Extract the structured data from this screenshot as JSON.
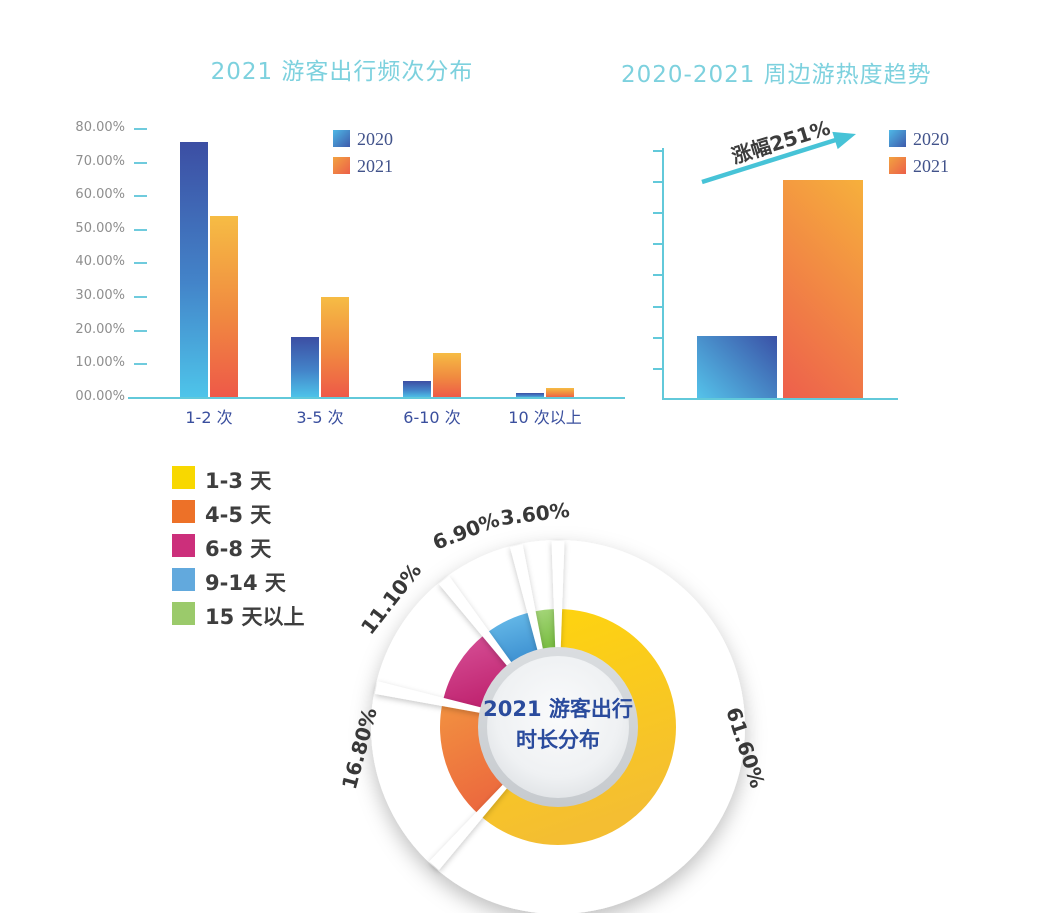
{
  "background": "#FFFFFF",
  "accent_colors": {
    "title_teal": "#7DD1DE",
    "axis_cyan": "#62C9DA",
    "arrow_cyan": "#47C3D7",
    "blue_bar_top": "#3C4EA3",
    "blue_bar_bottom": "#4EC5EA",
    "orange_bar_top": "#F6BC44",
    "orange_bar_bottom": "#EE5848"
  },
  "chart_data": [
    {
      "type": "bar",
      "title": "2021 游客出行频次分布",
      "categories": [
        "1-2 次",
        "3-5 次",
        "6-10 次",
        "10 次以上"
      ],
      "series": [
        {
          "name": "2020",
          "values": [
            76,
            18,
            5,
            1.5
          ],
          "color": "#4A86CC"
        },
        {
          "name": "2021",
          "values": [
            54,
            30,
            13.5,
            3
          ],
          "color": "#F08940"
        }
      ],
      "ylabel": "",
      "ylim": [
        0,
        80
      ],
      "y_tick_labels": [
        "80.00%",
        "70.00%",
        "60.00%",
        "50.00%",
        "40.00%",
        "30.00%",
        "20.00%",
        "10.00%",
        "00.00%"
      ],
      "grid": false,
      "legend_position": "top-right",
      "unit": "%"
    },
    {
      "type": "bar",
      "title": "2020-2021 周边游热度趋势",
      "categories": [
        "2020",
        "2021"
      ],
      "series": [
        {
          "name": "2020",
          "value": 2,
          "color": "#4A86CC"
        },
        {
          "name": "2021",
          "value": 7.02,
          "color": "#F08940"
        }
      ],
      "annotation": "涨幅251%",
      "y_axis": {
        "tick_count": 8,
        "tick_labels": []
      },
      "legend_position": "top-right",
      "note_increase_percent": "251%"
    },
    {
      "type": "pie",
      "title": "2021 游客出行时长分布",
      "center_label": [
        "2021 游客出行",
        "时长分布"
      ],
      "categories": [
        "1-3 天",
        "4-5 天",
        "6-8 天",
        "9-14 天",
        "15 天以上"
      ],
      "values": [
        61.6,
        16.8,
        11.1,
        6.9,
        3.6
      ],
      "value_labels": [
        "61.60%",
        "16.80%",
        "11.10%",
        "6.90%",
        "3.60%"
      ],
      "colors": [
        "#F8D800",
        "#ED7128",
        "#CC2F7B",
        "#62A9DD",
        "#9BCA6B"
      ],
      "slice_gradients": [
        [
          "#FFD60B",
          "#F4BE32"
        ],
        [
          "#F29240",
          "#EC6A3E"
        ],
        [
          "#D8549A",
          "#C02470"
        ],
        [
          "#6CC0EC",
          "#3F92D2"
        ],
        [
          "#A9D87F",
          "#7CBF45"
        ]
      ],
      "legend_position": "top-left"
    }
  ]
}
